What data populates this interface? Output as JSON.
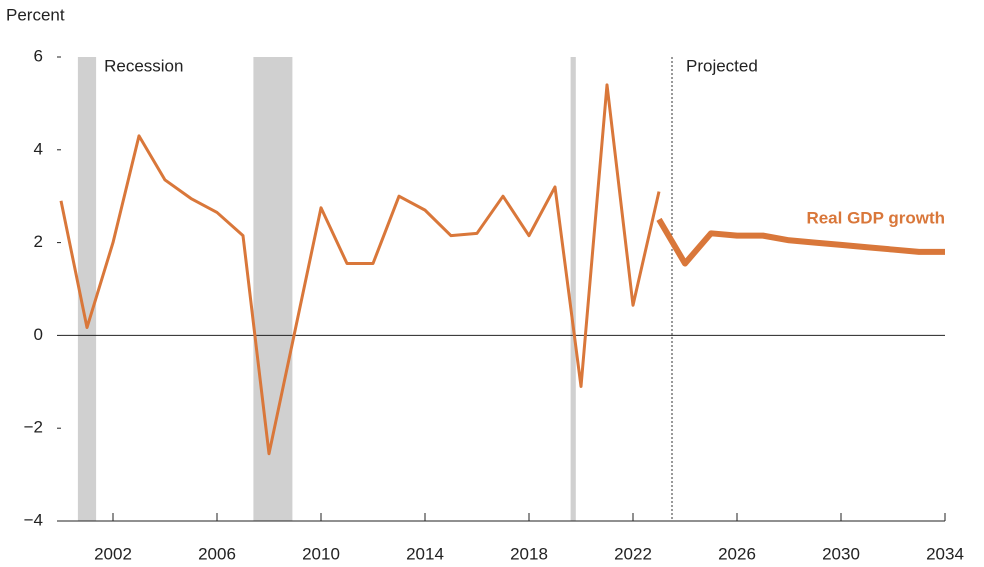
{
  "chart_data": {
    "type": "line",
    "y_axis_label": "Percent",
    "x": [
      2000,
      2001,
      2002,
      2003,
      2004,
      2005,
      2006,
      2007,
      2008,
      2009,
      2010,
      2011,
      2012,
      2013,
      2014,
      2015,
      2016,
      2017,
      2018,
      2019,
      2020,
      2021,
      2022,
      2023,
      2024,
      2025,
      2026,
      2027,
      2028,
      2029,
      2030,
      2031,
      2032,
      2033,
      2034
    ],
    "series": [
      {
        "color": "#d9773a",
        "values": [
          2.9,
          0.17,
          2.0,
          4.3,
          3.35,
          2.95,
          2.65,
          2.15,
          -2.55,
          0.1,
          2.75,
          1.55,
          1.55,
          3.0,
          2.7,
          2.15,
          2.2,
          3.0,
          2.15,
          3.2,
          -1.1,
          5.4,
          0.65,
          3.1,
          null,
          null,
          null,
          null,
          null,
          null,
          null,
          null,
          null,
          null,
          null
        ]
      },
      {
        "name": "Real GDP growth",
        "color": "#d9773a",
        "values": [
          null,
          null,
          null,
          null,
          null,
          null,
          null,
          null,
          null,
          null,
          null,
          null,
          null,
          null,
          null,
          null,
          null,
          null,
          null,
          null,
          null,
          null,
          null,
          2.5,
          1.55,
          2.2,
          2.15,
          2.15,
          2.05,
          2.0,
          1.95,
          1.9,
          1.85,
          1.8,
          1.8
        ]
      }
    ],
    "recession_label": "Recession",
    "recessions": [
      [
        2000.65,
        2001.35
      ],
      [
        2007.4,
        2008.9
      ],
      [
        2019.6,
        2019.8
      ]
    ],
    "recession_color": "#d0d0d0",
    "projection_label": "Projected",
    "projection_start": 2023.5,
    "xlim": [
      2000,
      2034
    ],
    "xticks": [
      2002,
      2006,
      2010,
      2014,
      2018,
      2022,
      2026,
      2030,
      2034
    ],
    "ylim": [
      -4,
      6
    ],
    "yticks": [
      {
        "value": -4,
        "label": "−4"
      },
      {
        "value": -2,
        "label": "−2"
      },
      0,
      2,
      4,
      6
    ]
  }
}
